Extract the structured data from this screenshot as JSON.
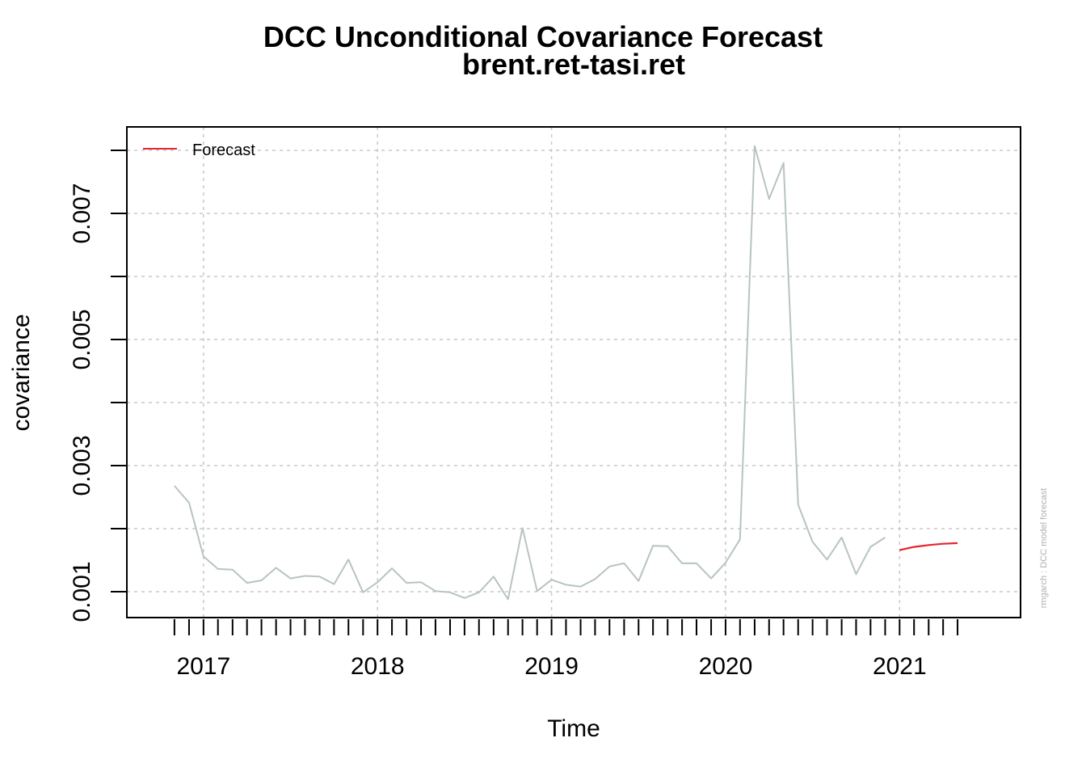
{
  "chart_data": {
    "type": "line",
    "title": "DCC Unconditional Covariance Forecast",
    "subtitle": "brent.ret-tasi.ret",
    "xlabel": "Time",
    "ylabel": "covariance",
    "side_note": "rmgarch  :  DCC model forecast",
    "x_tick_labels": [
      "2017",
      "2018",
      "2019",
      "2020",
      "2021"
    ],
    "y_tick_labels": [
      "0.001",
      "0.003",
      "0.005",
      "0.007"
    ],
    "xlim": [
      2016.7,
      2021.6
    ],
    "ylim": [
      0.00075,
      0.00828
    ],
    "grid": true,
    "legend": {
      "position": "top-left",
      "entries": [
        {
          "label": "Forecast",
          "color": "#e8232f"
        }
      ]
    },
    "series": [
      {
        "role": "history",
        "color": "#b7c4c2",
        "x": [
          2016.833,
          2016.917,
          2017.0,
          2017.083,
          2017.167,
          2017.25,
          2017.333,
          2017.417,
          2017.5,
          2017.583,
          2017.667,
          2017.75,
          2017.833,
          2017.917,
          2018.0,
          2018.083,
          2018.167,
          2018.25,
          2018.333,
          2018.417,
          2018.5,
          2018.583,
          2018.667,
          2018.75,
          2018.833,
          2018.917,
          2019.0,
          2019.083,
          2019.167,
          2019.25,
          2019.333,
          2019.417,
          2019.5,
          2019.583,
          2019.667,
          2019.75,
          2019.833,
          2019.917,
          2020.0,
          2020.083,
          2020.167,
          2020.25,
          2020.333,
          2020.417,
          2020.5,
          2020.583,
          2020.667,
          2020.75,
          2020.833,
          2020.917
        ],
        "values": [
          0.00268,
          0.00241,
          0.00156,
          0.00136,
          0.00135,
          0.00114,
          0.00118,
          0.00138,
          0.00121,
          0.00125,
          0.00124,
          0.00112,
          0.00151,
          0.00099,
          0.00115,
          0.00137,
          0.00114,
          0.00115,
          0.00101,
          0.00099,
          0.0009,
          0.00099,
          0.00124,
          0.00088,
          0.00201,
          0.00101,
          0.00119,
          0.00111,
          0.00108,
          0.0012,
          0.0014,
          0.00145,
          0.00117,
          0.00173,
          0.00172,
          0.00145,
          0.00145,
          0.00121,
          0.00146,
          0.00183,
          0.00807,
          0.00723,
          0.0078,
          0.00238,
          0.00179,
          0.00151,
          0.00186,
          0.00128,
          0.00171,
          0.00186
        ]
      },
      {
        "role": "forecast",
        "name": "Forecast",
        "color": "#e8232f",
        "x": [
          2021.0,
          2021.083,
          2021.167,
          2021.25,
          2021.333
        ],
        "values": [
          0.00166,
          0.00171,
          0.00174,
          0.00176,
          0.00177
        ]
      }
    ]
  }
}
